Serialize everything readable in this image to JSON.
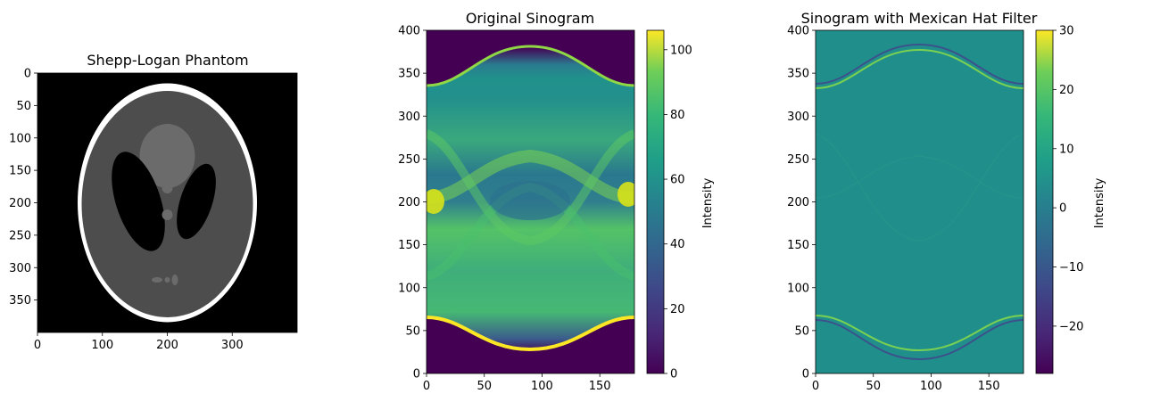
{
  "chart_data": [
    {
      "type": "heatmap",
      "title": "Shepp-Logan Phantom",
      "colormap": "gray",
      "x_ticks": [
        0,
        100,
        200,
        300
      ],
      "y_ticks": [
        0,
        50,
        100,
        150,
        200,
        250,
        300,
        350
      ],
      "xlim": [
        0,
        400
      ],
      "ylim": [
        400,
        0
      ]
    },
    {
      "type": "heatmap",
      "title": "Original Sinogram",
      "colormap": "viridis",
      "x_ticks": [
        0,
        50,
        100,
        150
      ],
      "y_ticks": [
        0,
        50,
        100,
        150,
        200,
        250,
        300,
        350,
        400
      ],
      "xlim": [
        0,
        180
      ],
      "ylim": [
        0,
        400
      ],
      "colorbar": {
        "label": "Intensity",
        "ticks": [
          0,
          20,
          40,
          60,
          80,
          100
        ],
        "range": [
          0,
          106
        ]
      }
    },
    {
      "type": "heatmap",
      "title": "Sinogram with Mexican Hat Filter",
      "colormap": "viridis",
      "x_ticks": [
        0,
        50,
        100,
        150
      ],
      "y_ticks": [
        0,
        50,
        100,
        150,
        200,
        250,
        300,
        350,
        400
      ],
      "xlim": [
        0,
        180
      ],
      "ylim": [
        0,
        400
      ],
      "colorbar": {
        "label": "Intensity",
        "ticks": [
          -20,
          -10,
          0,
          10,
          20,
          30
        ],
        "range": [
          -28,
          30
        ]
      }
    }
  ]
}
